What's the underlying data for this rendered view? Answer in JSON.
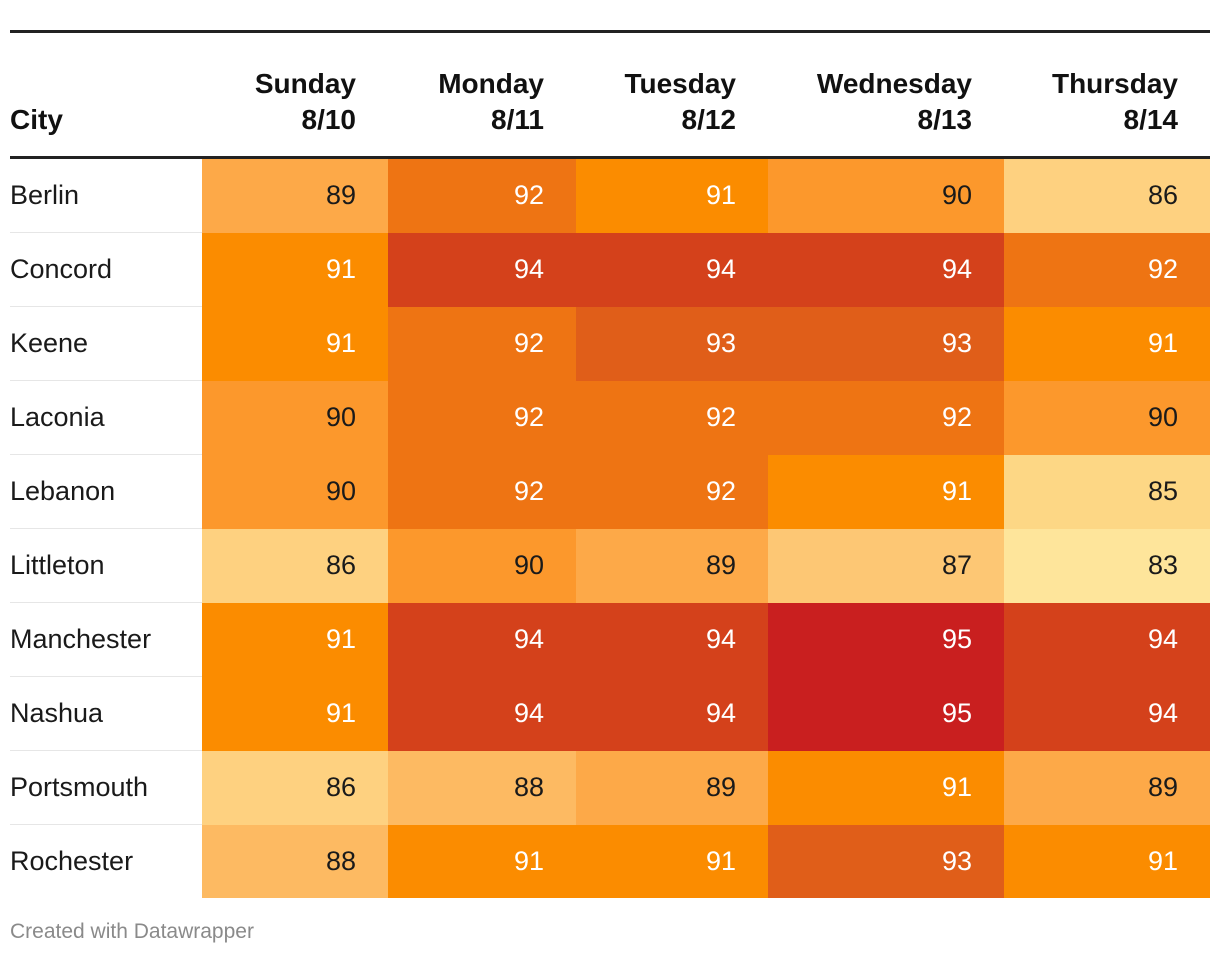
{
  "chart_data": {
    "type": "heatmap",
    "title": "",
    "row_header": "City",
    "columns": [
      {
        "day": "Sunday",
        "date": "8/10"
      },
      {
        "day": "Monday",
        "date": "8/11"
      },
      {
        "day": "Tuesday",
        "date": "8/12"
      },
      {
        "day": "Wednesday",
        "date": "8/13"
      },
      {
        "day": "Thursday",
        "date": "8/14"
      }
    ],
    "rows": [
      {
        "city": "Berlin",
        "values": [
          89,
          92,
          91,
          90,
          86
        ]
      },
      {
        "city": "Concord",
        "values": [
          91,
          94,
          94,
          94,
          92
        ]
      },
      {
        "city": "Keene",
        "values": [
          91,
          92,
          93,
          93,
          91
        ]
      },
      {
        "city": "Laconia",
        "values": [
          90,
          92,
          92,
          92,
          90
        ]
      },
      {
        "city": "Lebanon",
        "values": [
          90,
          92,
          92,
          91,
          85
        ]
      },
      {
        "city": "Littleton",
        "values": [
          86,
          90,
          89,
          87,
          83
        ]
      },
      {
        "city": "Manchester",
        "values": [
          91,
          94,
          94,
          95,
          94
        ]
      },
      {
        "city": "Nashua",
        "values": [
          91,
          94,
          94,
          95,
          94
        ]
      },
      {
        "city": "Portsmouth",
        "values": [
          86,
          88,
          89,
          91,
          89
        ]
      },
      {
        "city": "Rochester",
        "values": [
          88,
          91,
          91,
          93,
          91
        ]
      }
    ],
    "color_scale": {
      "83": "#fee59b",
      "85": "#fdd785",
      "86": "#fed180",
      "87": "#fdc774",
      "88": "#fdba62",
      "89": "#fda948",
      "90": "#fc982c",
      "91": "#fb8c00",
      "92": "#ee7413",
      "93": "#e05e19",
      "94": "#d4411b",
      "95": "#c91f1f"
    },
    "dark_text_color": "#1a1a1a",
    "light_text_color": "#ffffff",
    "light_text_threshold": 91
  },
  "footer": {
    "credit": "Created with Datawrapper"
  }
}
